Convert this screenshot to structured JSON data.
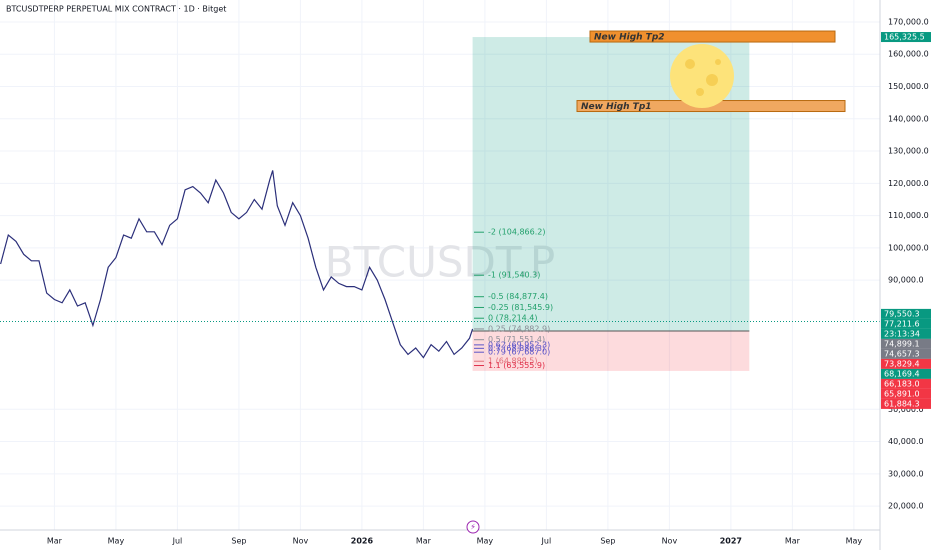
{
  "chart_data": {
    "type": "line",
    "title": "BTCUSDTPERP PERPETUAL MIX CONTRACT · 1D · Bitget",
    "watermark": "BTCUSDT.P",
    "xlim": [
      0.23,
      28.85
    ],
    "ylim": [
      12600,
      176800
    ],
    "grid": true,
    "xticks": [
      {
        "value": 2,
        "label": "Mar"
      },
      {
        "value": 4,
        "label": "May"
      },
      {
        "value": 6,
        "label": "Jul"
      },
      {
        "value": 8,
        "label": "Sep"
      },
      {
        "value": 10,
        "label": "Nov"
      },
      {
        "value": 12,
        "label": "2026"
      },
      {
        "value": 14,
        "label": "Mar"
      },
      {
        "value": 16,
        "label": "May"
      },
      {
        "value": 18,
        "label": "Jul"
      },
      {
        "value": 20,
        "label": "Sep"
      },
      {
        "value": 22,
        "label": "Nov"
      },
      {
        "value": 24,
        "label": "2027"
      },
      {
        "value": 26,
        "label": "Mar"
      },
      {
        "value": 28,
        "label": "May"
      }
    ],
    "yticks": [
      {
        "value": 170000,
        "label": "170,000.0"
      },
      {
        "value": 160000,
        "label": "160,000.0"
      },
      {
        "value": 150000,
        "label": "150,000.0"
      },
      {
        "value": 140000,
        "label": "140,000.0"
      },
      {
        "value": 130000,
        "label": "130,000.0"
      },
      {
        "value": 120000,
        "label": "120,000.0"
      },
      {
        "value": 110000,
        "label": "110,000.0"
      },
      {
        "value": 100000,
        "label": "100,000.0"
      },
      {
        "value": 90000,
        "label": "90,000.0"
      },
      {
        "value": 50000,
        "label": "50,000.0"
      },
      {
        "value": 40000,
        "label": "40,000.0"
      },
      {
        "value": 30000,
        "label": "30,000.0"
      },
      {
        "value": 20000,
        "label": "20,000.0"
      }
    ],
    "series": [
      {
        "color": "#2b2f7a",
        "x": [
          0.25,
          0.5,
          0.75,
          1.0,
          1.25,
          1.5,
          1.75,
          2.0,
          2.25,
          2.5,
          2.75,
          3.0,
          3.25,
          3.5,
          3.75,
          4.0,
          4.25,
          4.5,
          4.75,
          5.0,
          5.25,
          5.5,
          5.75,
          6.0,
          6.25,
          6.5,
          6.75,
          7.0,
          7.25,
          7.5,
          7.75,
          8.0,
          8.25,
          8.5,
          8.75,
          9.0,
          9.1,
          9.25,
          9.5,
          9.75,
          10.0,
          10.25,
          10.5,
          10.75,
          11.0,
          11.25,
          11.5,
          11.75,
          12.0,
          12.25,
          12.5,
          12.75,
          13.0,
          13.25,
          13.5,
          13.75,
          14.0,
          14.25,
          14.5,
          14.75,
          15.0,
          15.25,
          15.5,
          15.6
        ],
        "values": [
          95000,
          104000,
          102000,
          98000,
          96000,
          96000,
          86000,
          84000,
          83000,
          87000,
          82000,
          83000,
          76000,
          84000,
          94000,
          97000,
          104000,
          103000,
          109000,
          105000,
          105000,
          101000,
          107000,
          109000,
          118000,
          119000,
          117000,
          114000,
          121000,
          117000,
          111000,
          109000,
          111000,
          115000,
          112000,
          121000,
          124000,
          113000,
          107000,
          114000,
          110000,
          103000,
          94000,
          87000,
          91000,
          89000,
          88000,
          88000,
          87000,
          94000,
          90000,
          84000,
          77000,
          70000,
          67000,
          69000,
          66000,
          70000,
          68000,
          71000,
          67000,
          69000,
          72000,
          74899
        ]
      }
    ],
    "position": {
      "x": [
        15.6,
        24.6
      ],
      "target": 165325.5,
      "entry": 74246,
      "stop": 61884.3
    },
    "fib": [
      {
        "label": "-2 (104,866.2)",
        "value": 104866.2,
        "color": "#22a06b"
      },
      {
        "label": "-1 (91,540.3)",
        "value": 91540.3,
        "color": "#22a06b"
      },
      {
        "label": "-0.5 (84,877.4)",
        "value": 84877.4,
        "color": "#22a06b"
      },
      {
        "label": "-0.25 (81,545.9)",
        "value": 81545.9,
        "color": "#22a06b"
      },
      {
        "label": "0 (78,214.4)",
        "value": 78214.4,
        "color": "#22a06b"
      },
      {
        "label": "0.25 (74,882.9)",
        "value": 74882.9,
        "color": "#8a8d96"
      },
      {
        "label": "0.5 (71,551.4)",
        "value": 71551.4,
        "color": "#8a8d96"
      },
      {
        "label": "0.62 (69,952.3)",
        "value": 69952.3,
        "color": "#5b55c8"
      },
      {
        "label": "0.7 (68,886.3)",
        "value": 68886.3,
        "color": "#5b55c8"
      },
      {
        "label": "0.79 (67,687.0)",
        "value": 67687.0,
        "color": "#5b55c8"
      },
      {
        "label": "1 (64,888.5)",
        "value": 64888.5,
        "color": "#e0707a"
      },
      {
        "label": "1.1 (63,555.9)",
        "value": 63555.9,
        "color": "#e0304a"
      }
    ],
    "price_tags": [
      {
        "value": 165325.5,
        "label": "165,325.5",
        "color": "#089981"
      },
      {
        "value": 79550.3,
        "label": "79,550.3",
        "color": "#089981"
      },
      {
        "value": 77211.6,
        "label": "77,211.6",
        "color": "#089981"
      },
      {
        "value": 74899.1,
        "label": "74,899.1",
        "color": "#787b86"
      },
      {
        "value": 74657.3,
        "label": "74,657.3",
        "color": "#787b86"
      },
      {
        "value": 73829.4,
        "label": "73,829.4",
        "color": "#f23645"
      },
      {
        "value": 68169.4,
        "label": "68,169.4",
        "color": "#089981"
      },
      {
        "value": 66183.0,
        "label": "66,183.0",
        "color": "#f23645"
      },
      {
        "value": 65891.0,
        "label": "65,891.0",
        "color": "#f23645"
      },
      {
        "value": 61884.3,
        "label": "61,884.3",
        "color": "#f23645"
      }
    ],
    "countdown": "23:13:34",
    "annotations": [
      {
        "text": "New High Tp2",
        "value": 165325.5
      },
      {
        "text": "New High Tp1",
        "value": 143800
      }
    ]
  }
}
